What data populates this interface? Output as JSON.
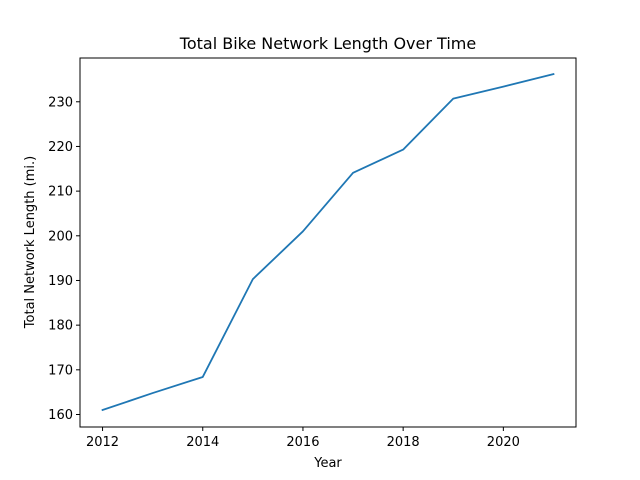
{
  "chart_data": {
    "type": "line",
    "title": "Total Bike Network Length Over Time",
    "xlabel": "Year",
    "ylabel": "Total Network Length (mi.)",
    "xlim": [
      2011.55,
      2021.45
    ],
    "ylim": [
      157.2,
      239.8
    ],
    "x_ticks": [
      2012,
      2014,
      2016,
      2018,
      2020
    ],
    "y_ticks": [
      160,
      170,
      180,
      190,
      200,
      210,
      220,
      230
    ],
    "grid": false,
    "line_color": "#1f77b4",
    "series": [
      {
        "x": [
          2012,
          2013,
          2014,
          2015,
          2016,
          2017,
          2018,
          2019,
          2020,
          2021
        ],
        "values": [
          161.0,
          164.8,
          168.4,
          190.3,
          201.0,
          214.1,
          219.3,
          230.7,
          233.4,
          236.2
        ]
      }
    ]
  }
}
